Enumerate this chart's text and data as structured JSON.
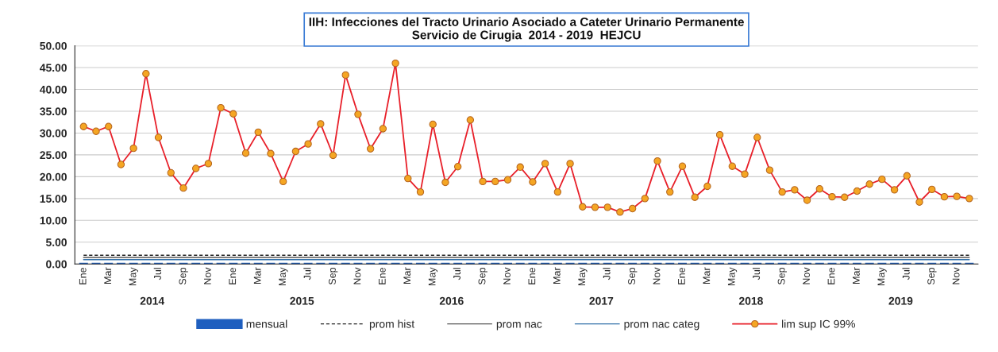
{
  "chart_data": {
    "type": "line",
    "title": "IIH: Infecciones del Tracto Urinario Asociado a Cateter Urinario Permanente\nServicio de Cirugia  2014 - 2019  HEJCU",
    "categories": [
      "Ene",
      null,
      "Mar",
      null,
      "May",
      null,
      "Jul",
      null,
      "Sep",
      null,
      "Nov",
      null,
      "Ene",
      null,
      "Mar",
      null,
      "May",
      null,
      "Jul",
      null,
      "Sep",
      null,
      "Nov",
      null,
      "Ene",
      null,
      "Mar",
      null,
      "May",
      null,
      "Jul",
      null,
      "Sep",
      null,
      "Nov",
      null,
      "Ene",
      null,
      "Mar",
      null,
      "May",
      null,
      "Jul",
      null,
      "Sep",
      null,
      "Nov",
      null,
      "Ene",
      null,
      "Mar",
      null,
      "May",
      null,
      "Jul",
      null,
      "Sep",
      null,
      "Nov",
      null,
      "Ene",
      null,
      "Mar",
      null,
      "May",
      null,
      "Jul",
      null,
      "Sep",
      null,
      "Nov",
      null
    ],
    "annotations": [
      "2014",
      "2015",
      "2016",
      "2017",
      "2018",
      "2019"
    ],
    "series": [
      {
        "name": "mensual",
        "type": "bar",
        "color": "#1f5fbf",
        "values": [
          0,
          0,
          0,
          0,
          0,
          0,
          0,
          0,
          0,
          0,
          0,
          0,
          0,
          0,
          0,
          0,
          0,
          0,
          0,
          0,
          0,
          0,
          0,
          0,
          0,
          0,
          0,
          0,
          0,
          0,
          0,
          0,
          0,
          0,
          0,
          0,
          0,
          0,
          0,
          0,
          0,
          0,
          0,
          0,
          0,
          0,
          0,
          0,
          0,
          0,
          0,
          0,
          0,
          0,
          0,
          0,
          0,
          0,
          0,
          0,
          0,
          0,
          0,
          0,
          0,
          0,
          0,
          0,
          0,
          0,
          0,
          0
        ]
      },
      {
        "name": "prom hist",
        "color": "#222222",
        "line_style": "dashed",
        "marker": "none",
        "values": [
          2.0,
          2.0,
          2.0,
          2.0,
          2.0,
          2.0,
          2.0,
          2.0,
          2.0,
          2.0,
          2.0,
          2.0,
          2.0,
          2.0,
          2.0,
          2.0,
          2.0,
          2.0,
          2.0,
          2.0,
          2.0,
          2.0,
          2.0,
          2.0,
          2.0,
          2.0,
          2.0,
          2.0,
          2.0,
          2.0,
          2.0,
          2.0,
          2.0,
          2.0,
          2.0,
          2.0,
          2.0,
          2.0,
          2.0,
          2.0,
          2.0,
          2.0,
          2.0,
          2.0,
          2.0,
          2.0,
          2.0,
          2.0,
          2.0,
          2.0,
          2.0,
          2.0,
          2.0,
          2.0,
          2.0,
          2.0,
          2.0,
          2.0,
          2.0,
          2.0,
          2.0,
          2.0,
          2.0,
          2.0,
          2.0,
          2.0,
          2.0,
          2.0,
          2.0,
          2.0,
          2.0,
          2.0
        ]
      },
      {
        "name": "prom nac",
        "color": "#555555",
        "line_style": "solid",
        "marker": "none",
        "values": [
          1.5,
          1.5,
          1.5,
          1.5,
          1.5,
          1.5,
          1.5,
          1.5,
          1.5,
          1.5,
          1.5,
          1.5,
          1.5,
          1.5,
          1.5,
          1.5,
          1.5,
          1.5,
          1.5,
          1.5,
          1.5,
          1.5,
          1.5,
          1.5,
          1.5,
          1.5,
          1.5,
          1.5,
          1.5,
          1.5,
          1.5,
          1.5,
          1.5,
          1.5,
          1.5,
          1.5,
          1.5,
          1.5,
          1.5,
          1.5,
          1.5,
          1.5,
          1.5,
          1.5,
          1.5,
          1.5,
          1.5,
          1.5,
          1.5,
          1.5,
          1.5,
          1.5,
          1.5,
          1.5,
          1.5,
          1.5,
          1.5,
          1.5,
          1.5,
          1.5,
          1.5,
          1.5,
          1.5,
          1.5,
          1.5,
          1.5,
          1.5,
          1.5,
          1.5,
          1.5,
          1.5,
          1.5
        ]
      },
      {
        "name": "prom nac categ",
        "color": "#2f6fa8",
        "line_style": "solid",
        "marker": "none",
        "values": [
          1.0,
          1.0,
          1.0,
          1.0,
          1.0,
          1.0,
          1.0,
          1.0,
          1.0,
          1.0,
          1.0,
          1.0,
          1.0,
          1.0,
          1.0,
          1.0,
          1.0,
          1.0,
          1.0,
          1.0,
          1.0,
          1.0,
          1.0,
          1.0,
          1.0,
          1.0,
          1.0,
          1.0,
          1.0,
          1.0,
          1.0,
          1.0,
          1.0,
          1.0,
          1.0,
          1.0,
          1.0,
          1.0,
          1.0,
          1.0,
          1.0,
          1.0,
          1.0,
          1.0,
          1.0,
          1.0,
          1.0,
          1.0,
          1.0,
          1.0,
          1.0,
          1.0,
          1.0,
          1.0,
          1.0,
          1.0,
          1.0,
          1.0,
          1.0,
          1.0,
          1.0,
          1.0,
          1.0,
          1.0,
          1.0,
          1.0,
          1.0,
          1.0,
          1.0,
          1.0,
          1.0,
          1.0
        ]
      },
      {
        "name": "lim sup IC 99%",
        "color": "#e8202a",
        "line_style": "solid",
        "marker": "circle",
        "values": [
          31.5,
          30.4,
          31.5,
          22.8,
          26.5,
          43.6,
          29.0,
          20.9,
          17.4,
          21.9,
          23.0,
          35.8,
          34.4,
          25.4,
          30.2,
          25.3,
          18.9,
          25.8,
          27.5,
          32.1,
          24.9,
          43.3,
          34.3,
          26.4,
          31.0,
          46.0,
          19.6,
          16.5,
          32.0,
          18.7,
          22.3,
          33.0,
          18.9,
          18.9,
          19.3,
          22.2,
          18.8,
          23.0,
          16.5,
          23.0,
          13.1,
          13.0,
          13.0,
          11.9,
          12.7,
          15.0,
          23.6,
          16.5,
          22.4,
          15.3,
          17.8,
          29.6,
          22.4,
          20.6,
          29.0,
          21.5,
          16.5,
          17.0,
          14.6,
          17.2,
          15.4,
          15.3,
          16.7,
          18.3,
          19.4,
          17.0,
          20.2,
          14.2,
          17.1,
          15.4,
          15.5,
          15.0
        ]
      }
    ],
    "ylim": [
      0,
      50
    ],
    "yticks": [
      {
        "value": 0,
        "label": "0.00"
      },
      {
        "value": 5,
        "label": "5.00"
      },
      {
        "value": 10,
        "label": "10.00"
      },
      {
        "value": 15,
        "label": "15.00"
      },
      {
        "value": 20,
        "label": "20.00"
      },
      {
        "value": 25,
        "label": "25.00"
      },
      {
        "value": 30,
        "label": "30.00"
      },
      {
        "value": 35,
        "label": "35.00"
      },
      {
        "value": 40,
        "label": "40.00"
      },
      {
        "value": 45,
        "label": "45.00"
      },
      {
        "value": 50,
        "label": "50.00"
      }
    ],
    "grid": "y",
    "legend": "bottom"
  }
}
